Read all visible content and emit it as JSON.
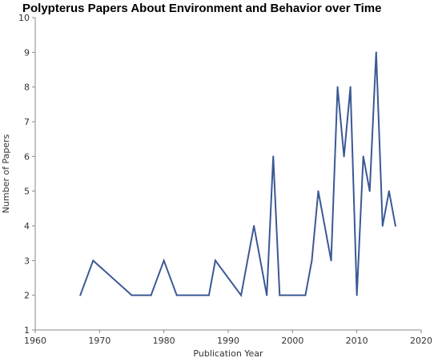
{
  "chart_data": {
    "type": "line",
    "title": "Polypterus Papers About Environment and Behavior over Time",
    "xlabel": "Publication Year",
    "ylabel": "Number of Papers",
    "xlim": [
      1960,
      2020
    ],
    "ylim": [
      1,
      10
    ],
    "x_ticks": [
      1960,
      1970,
      1980,
      1990,
      2000,
      2010,
      2020
    ],
    "y_ticks": [
      1,
      2,
      3,
      4,
      5,
      6,
      7,
      8,
      9,
      10
    ],
    "grid": false,
    "series": [
      {
        "color": "#3b5895",
        "points": [
          [
            1967,
            2
          ],
          [
            1969,
            3
          ],
          [
            1975,
            2
          ],
          [
            1978,
            2
          ],
          [
            1980,
            3
          ],
          [
            1982,
            2
          ],
          [
            1987,
            2
          ],
          [
            1988,
            3
          ],
          [
            1992,
            2
          ],
          [
            1994,
            4
          ],
          [
            1996,
            2
          ],
          [
            1997,
            6
          ],
          [
            1998,
            2
          ],
          [
            2002,
            2
          ],
          [
            2003,
            3
          ],
          [
            2004,
            5
          ],
          [
            2006,
            3
          ],
          [
            2007,
            8
          ],
          [
            2008,
            6
          ],
          [
            2009,
            8
          ],
          [
            2010,
            2
          ],
          [
            2011,
            6
          ],
          [
            2012,
            5
          ],
          [
            2013,
            9
          ],
          [
            2014,
            4
          ],
          [
            2015,
            5
          ],
          [
            2016,
            4
          ]
        ]
      }
    ]
  }
}
